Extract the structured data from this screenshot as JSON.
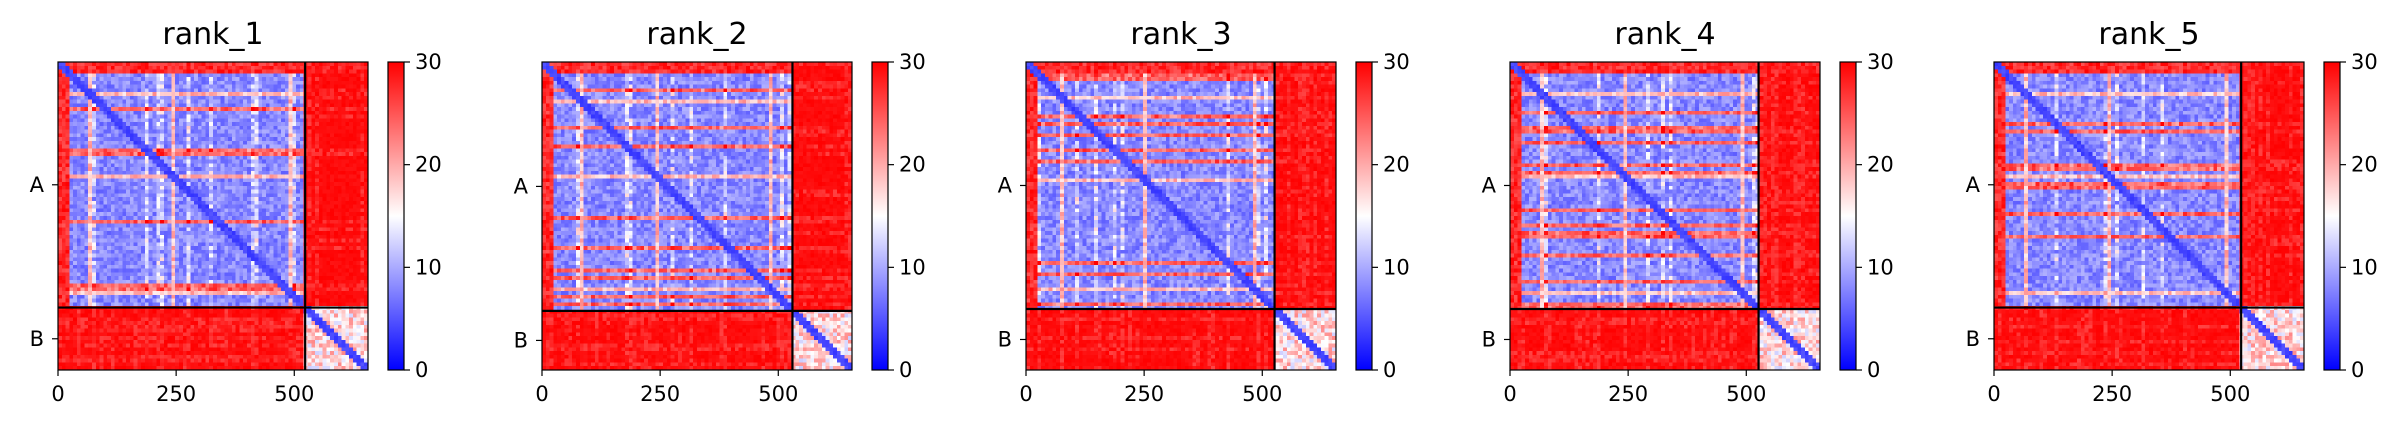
{
  "chart_data": [
    {
      "type": "heatmap",
      "title": "rank_1",
      "colormap": "bwr",
      "chains": [
        {
          "name": "A",
          "length": 523
        },
        {
          "name": "B",
          "length": 133
        }
      ],
      "x_range": [
        0,
        656
      ],
      "x_ticks": [
        0,
        250,
        500
      ],
      "y_tick_labels": [
        "A",
        "B"
      ],
      "colorbar": {
        "min": 0,
        "max": 30,
        "ticks": [
          0,
          10,
          20,
          30
        ]
      },
      "interchain_value": 30,
      "diagonal_band_value": 3,
      "intrachain_A_typical_value": 8,
      "intrachain_B_typical_value": 15,
      "bright_residue_lines": [
        70,
        245,
        490
      ]
    },
    {
      "type": "heatmap",
      "title": "rank_2",
      "colormap": "bwr",
      "chains": [
        {
          "name": "A",
          "length": 530
        },
        {
          "name": "B",
          "length": 126
        }
      ],
      "x_range": [
        0,
        656
      ],
      "x_ticks": [
        0,
        250,
        500
      ],
      "y_tick_labels": [
        "A",
        "B"
      ],
      "colorbar": {
        "min": 0,
        "max": 30,
        "ticks": [
          0,
          10,
          20,
          30
        ]
      },
      "interchain_value": 30,
      "diagonal_band_value": 3,
      "intrachain_A_typical_value": 8,
      "intrachain_B_typical_value": 15,
      "bright_residue_lines": [
        80,
        240,
        480
      ]
    },
    {
      "type": "heatmap",
      "title": "rank_3",
      "colormap": "bwr",
      "chains": [
        {
          "name": "A",
          "length": 526
        },
        {
          "name": "B",
          "length": 130
        }
      ],
      "x_range": [
        0,
        656
      ],
      "x_ticks": [
        0,
        250,
        500
      ],
      "y_tick_labels": [
        "A",
        "B"
      ],
      "colorbar": {
        "min": 0,
        "max": 30,
        "ticks": [
          0,
          10,
          20,
          30
        ]
      },
      "interchain_value": 30,
      "diagonal_band_value": 3,
      "intrachain_A_typical_value": 8,
      "intrachain_B_typical_value": 15,
      "bright_residue_lines": [
        75,
        250,
        485
      ]
    },
    {
      "type": "heatmap",
      "title": "rank_4",
      "colormap": "bwr",
      "chains": [
        {
          "name": "A",
          "length": 526
        },
        {
          "name": "B",
          "length": 130
        }
      ],
      "x_range": [
        0,
        656
      ],
      "x_ticks": [
        0,
        250,
        500
      ],
      "y_tick_labels": [
        "A",
        "B"
      ],
      "colorbar": {
        "min": 0,
        "max": 30,
        "ticks": [
          0,
          10,
          20,
          30
        ]
      },
      "interchain_value": 30,
      "diagonal_band_value": 3,
      "intrachain_A_typical_value": 8,
      "intrachain_B_typical_value": 15,
      "bright_residue_lines": [
        70,
        245,
        490
      ]
    },
    {
      "type": "heatmap",
      "title": "rank_5",
      "colormap": "bwr",
      "chains": [
        {
          "name": "A",
          "length": 523
        },
        {
          "name": "B",
          "length": 133
        }
      ],
      "x_range": [
        0,
        656
      ],
      "x_ticks": [
        0,
        250,
        500
      ],
      "y_tick_labels": [
        "A",
        "B"
      ],
      "colorbar": {
        "min": 0,
        "max": 30,
        "ticks": [
          0,
          10,
          20,
          30
        ]
      },
      "interchain_value": 30,
      "diagonal_band_value": 3,
      "intrachain_A_typical_value": 8,
      "intrachain_B_typical_value": 15,
      "bright_residue_lines": [
        70,
        245,
        490
      ]
    }
  ]
}
